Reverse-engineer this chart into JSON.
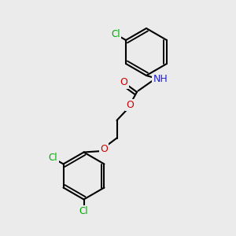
{
  "bg_color": "#ebebeb",
  "atom_colors": {
    "C": "#000000",
    "Cl": "#00aa00",
    "N": "#2020cc",
    "O": "#cc0000",
    "H": "#606060"
  },
  "bond_color": "#000000",
  "bond_width": 1.5
}
